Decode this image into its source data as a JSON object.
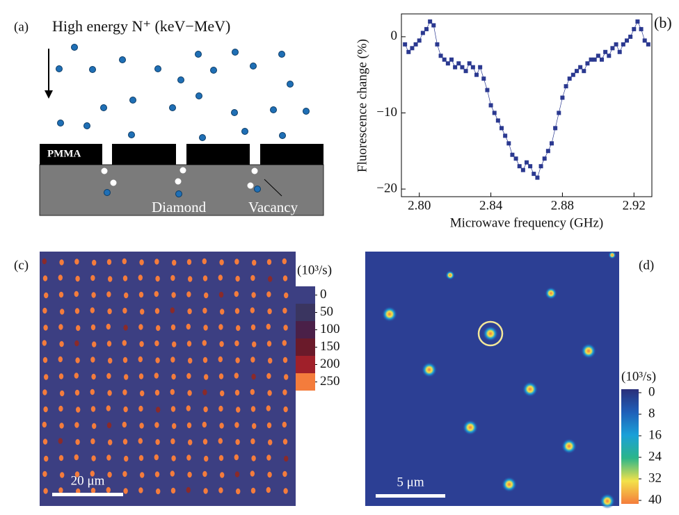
{
  "panel_a": {
    "label": "(a)",
    "title": "High energy N⁺ (keV−MeV)",
    "mask": "PMMA",
    "substrate": "Diamond",
    "defect": "Vacancy"
  },
  "chart_data": {
    "type": "scatter",
    "panel_label": "(b)",
    "x_label": "Microwave frequency (GHz)",
    "y_label": "Fluorescence change (%)",
    "x": [
      2.792,
      2.794,
      2.796,
      2.798,
      2.8,
      2.802,
      2.804,
      2.806,
      2.808,
      2.81,
      2.812,
      2.814,
      2.816,
      2.818,
      2.82,
      2.822,
      2.824,
      2.826,
      2.828,
      2.83,
      2.832,
      2.834,
      2.836,
      2.838,
      2.84,
      2.842,
      2.844,
      2.846,
      2.848,
      2.85,
      2.852,
      2.854,
      2.856,
      2.858,
      2.86,
      2.862,
      2.864,
      2.866,
      2.868,
      2.87,
      2.872,
      2.874,
      2.876,
      2.878,
      2.88,
      2.882,
      2.884,
      2.886,
      2.888,
      2.89,
      2.892,
      2.894,
      2.896,
      2.898,
      2.9,
      2.902,
      2.904,
      2.906,
      2.908,
      2.91,
      2.912,
      2.914,
      2.916,
      2.918,
      2.92,
      2.922,
      2.924,
      2.926,
      2.928
    ],
    "values": [
      -1,
      -2,
      -1.5,
      -1,
      -0.5,
      0.5,
      1,
      2,
      1.5,
      -1,
      -2.5,
      -3,
      -3.5,
      -3,
      -4,
      -3.5,
      -4,
      -4.5,
      -3.5,
      -4,
      -5,
      -4,
      -5.5,
      -7,
      -9,
      -10,
      -11,
      -12,
      -13,
      -14,
      -15.5,
      -16,
      -17,
      -17.5,
      -16.5,
      -17,
      -18,
      -18.5,
      -17,
      -16,
      -15,
      -14,
      -12,
      -10,
      -8,
      -6.5,
      -5.5,
      -5,
      -4.5,
      -4,
      -4.5,
      -3.5,
      -3,
      -3,
      -2.5,
      -3,
      -2,
      -2.5,
      -1.5,
      -1,
      -2,
      -1,
      -0.5,
      0,
      1,
      2,
      1,
      -0.5,
      -1
    ],
    "color": "#2b3990",
    "connect": true,
    "xlim": [
      2.79,
      2.93
    ],
    "xticks": [
      {
        "value": 2.8,
        "label": "2.80"
      },
      2.84,
      2.88,
      2.92
    ],
    "ylim": [
      -21,
      3
    ],
    "yticks": [
      0,
      {
        "value": -10,
        "label": "−10"
      },
      {
        "value": -20,
        "label": "−20"
      }
    ]
  },
  "panel_c": {
    "label": "(c)",
    "colorbar_unit": "(10³/s)",
    "colorbar_ticks": [
      0,
      50,
      100,
      150,
      200,
      250
    ],
    "colorbar_colors": [
      "#3c3f82",
      "#3a3560",
      "#4a2048",
      "#6a1a2a",
      "#a0202a",
      "#f47c3c"
    ],
    "scale_bar": "20 μm"
  },
  "panel_d": {
    "label": "(d)",
    "colorbar_unit": "(10³/s)",
    "colorbar_lim": [
      0,
      40
    ],
    "colorbar_ticks": [
      0,
      8,
      16,
      24,
      32,
      40
    ],
    "scale_bar": "5 μm"
  }
}
